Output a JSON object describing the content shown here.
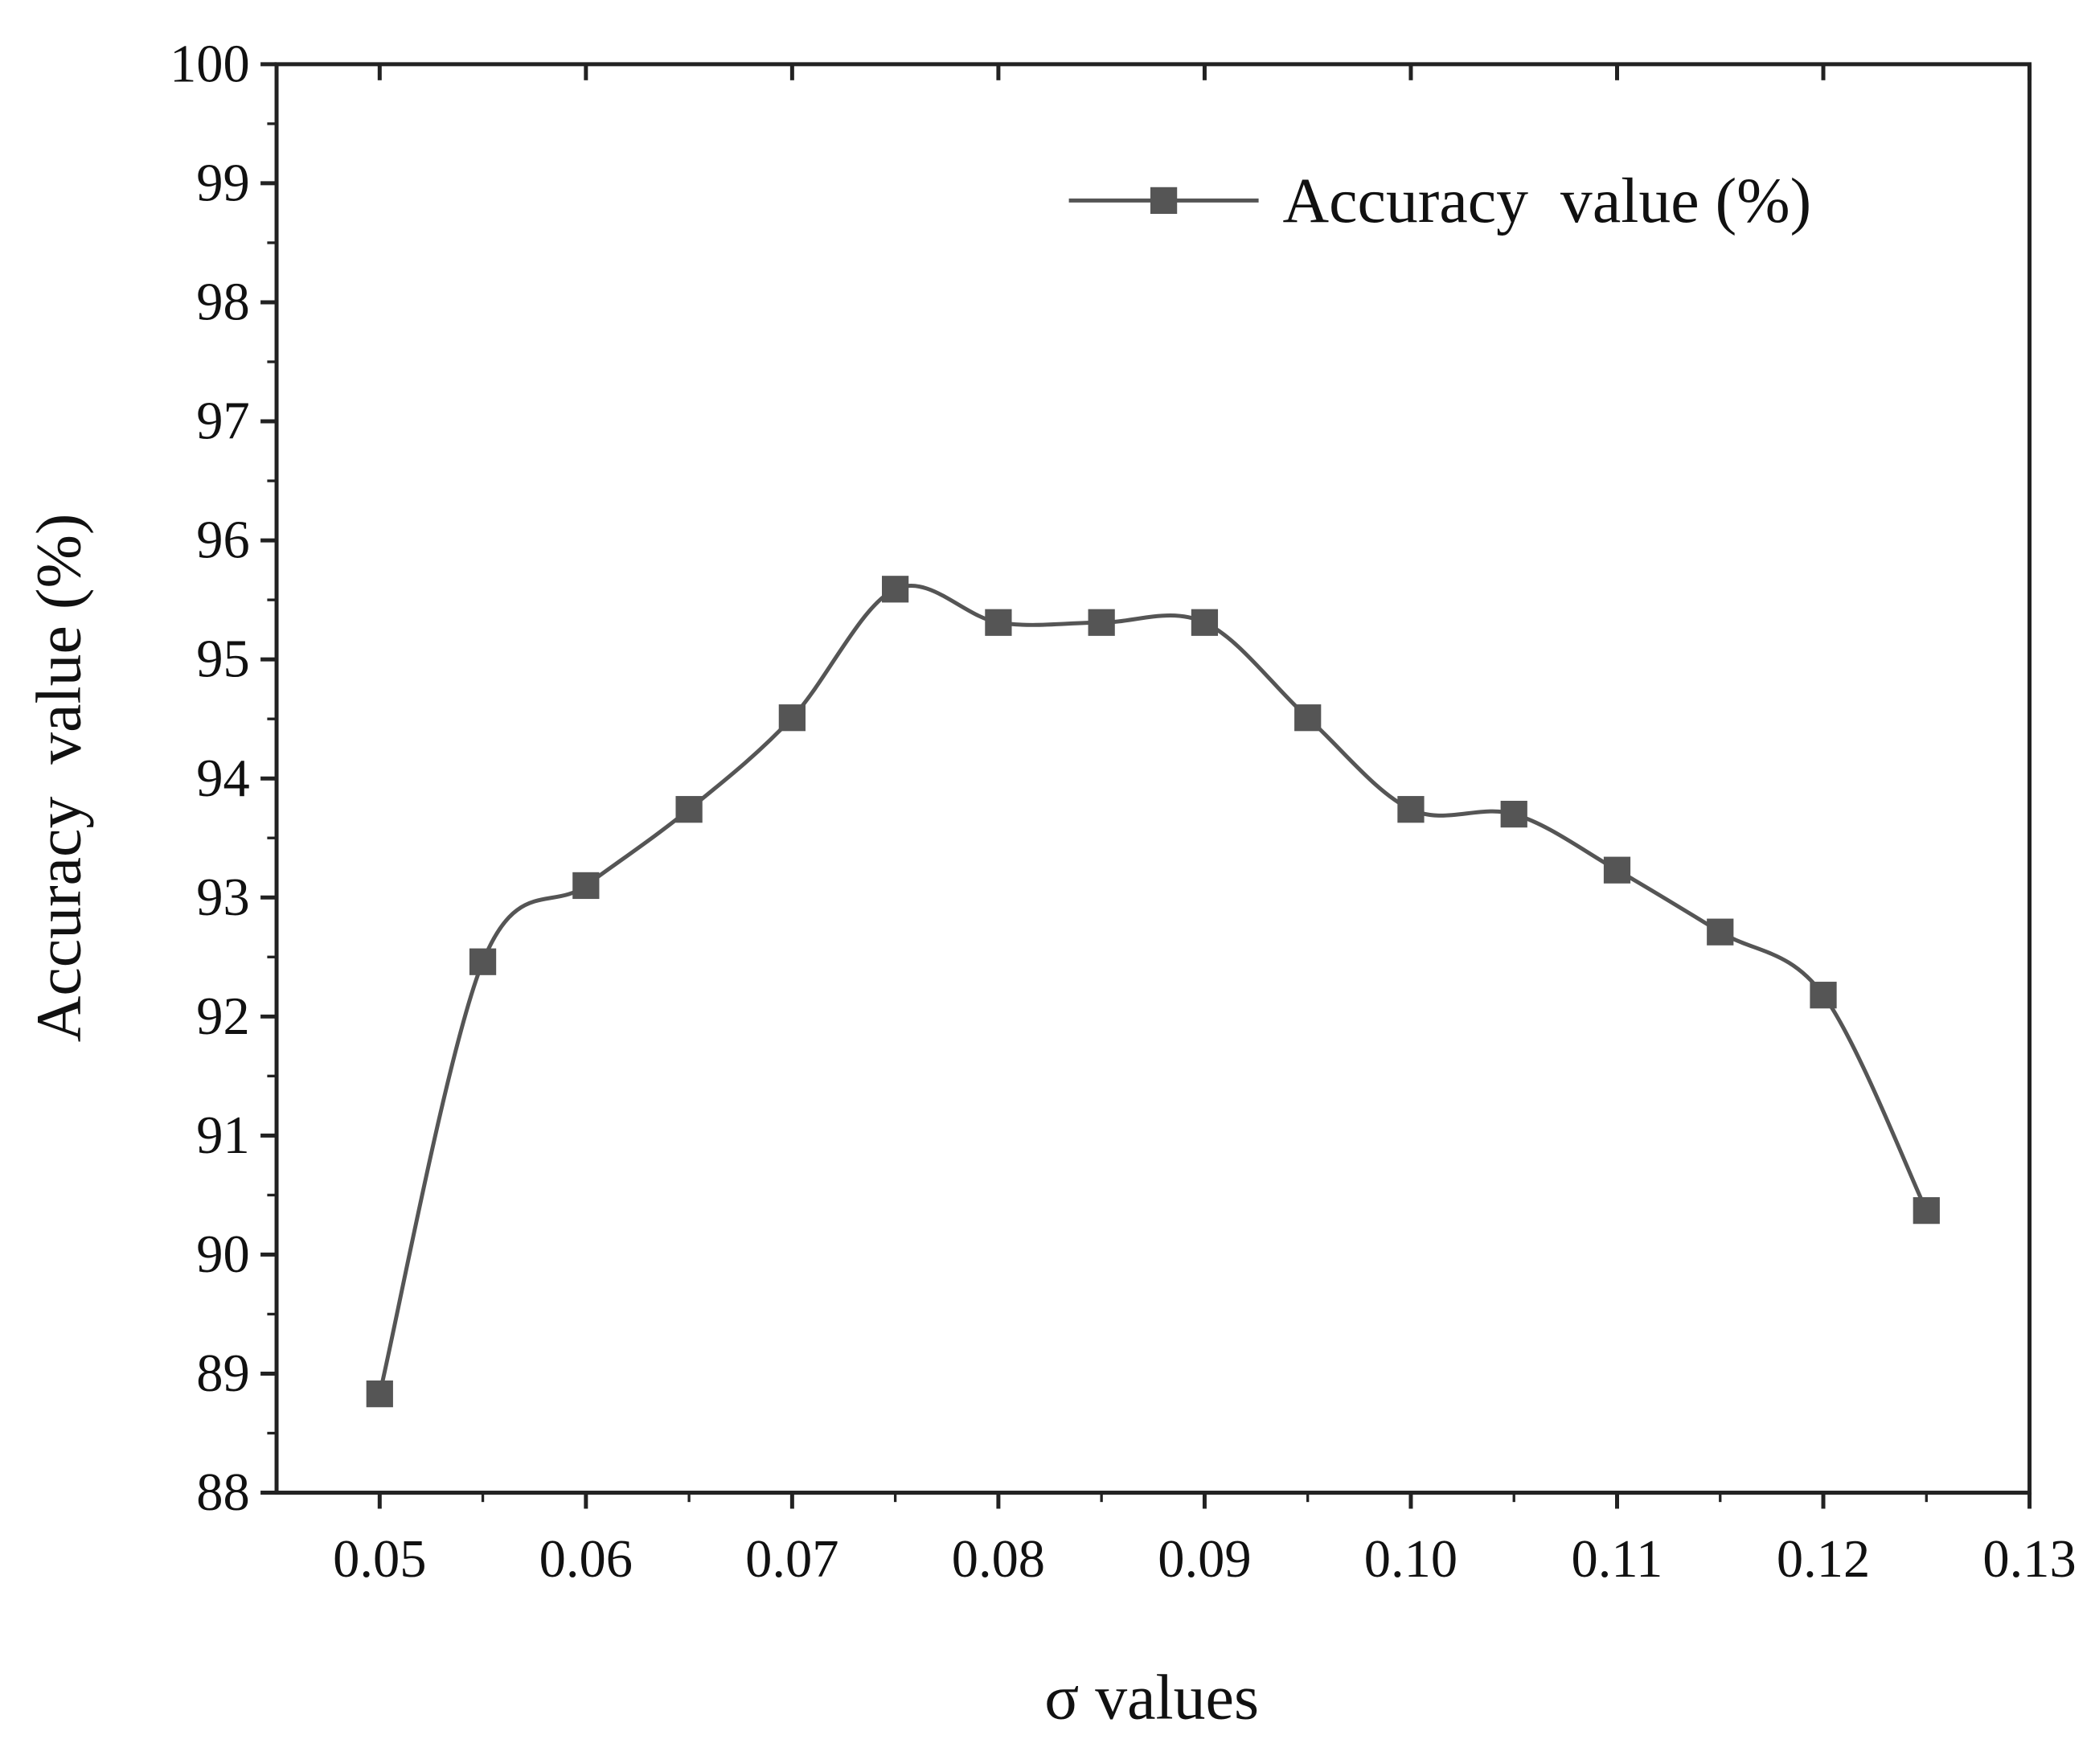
{
  "chart_data": {
    "type": "line",
    "x_label": "σ values",
    "y_label": "Accuracy  value (%)",
    "x": [
      0.05,
      0.055,
      0.06,
      0.065,
      0.07,
      0.075,
      0.08,
      0.085,
      0.09,
      0.095,
      0.1,
      0.105,
      0.11,
      0.115,
      0.12,
      0.125
    ],
    "series": [
      {
        "name": "Accuracy  value (%)",
        "color": "#555555",
        "values": [
          88.83,
          92.46,
          93.1,
          93.74,
          94.51,
          95.59,
          95.31,
          95.31,
          95.31,
          94.51,
          93.74,
          93.7,
          93.23,
          92.71,
          92.18,
          90.37
        ]
      }
    ],
    "xlim": [
      0.045,
      0.13
    ],
    "xticks": [
      0.05,
      0.06,
      0.07,
      0.08,
      0.09,
      {
        "value": 0.1,
        "label": "0.10"
      },
      0.11,
      0.12,
      0.13
    ],
    "ylim": [
      88,
      100
    ],
    "yticks": [
      88,
      89,
      90,
      91,
      92,
      93,
      94,
      95,
      96,
      97,
      98,
      99,
      100
    ],
    "legend": "upper right",
    "smooth": true
  }
}
